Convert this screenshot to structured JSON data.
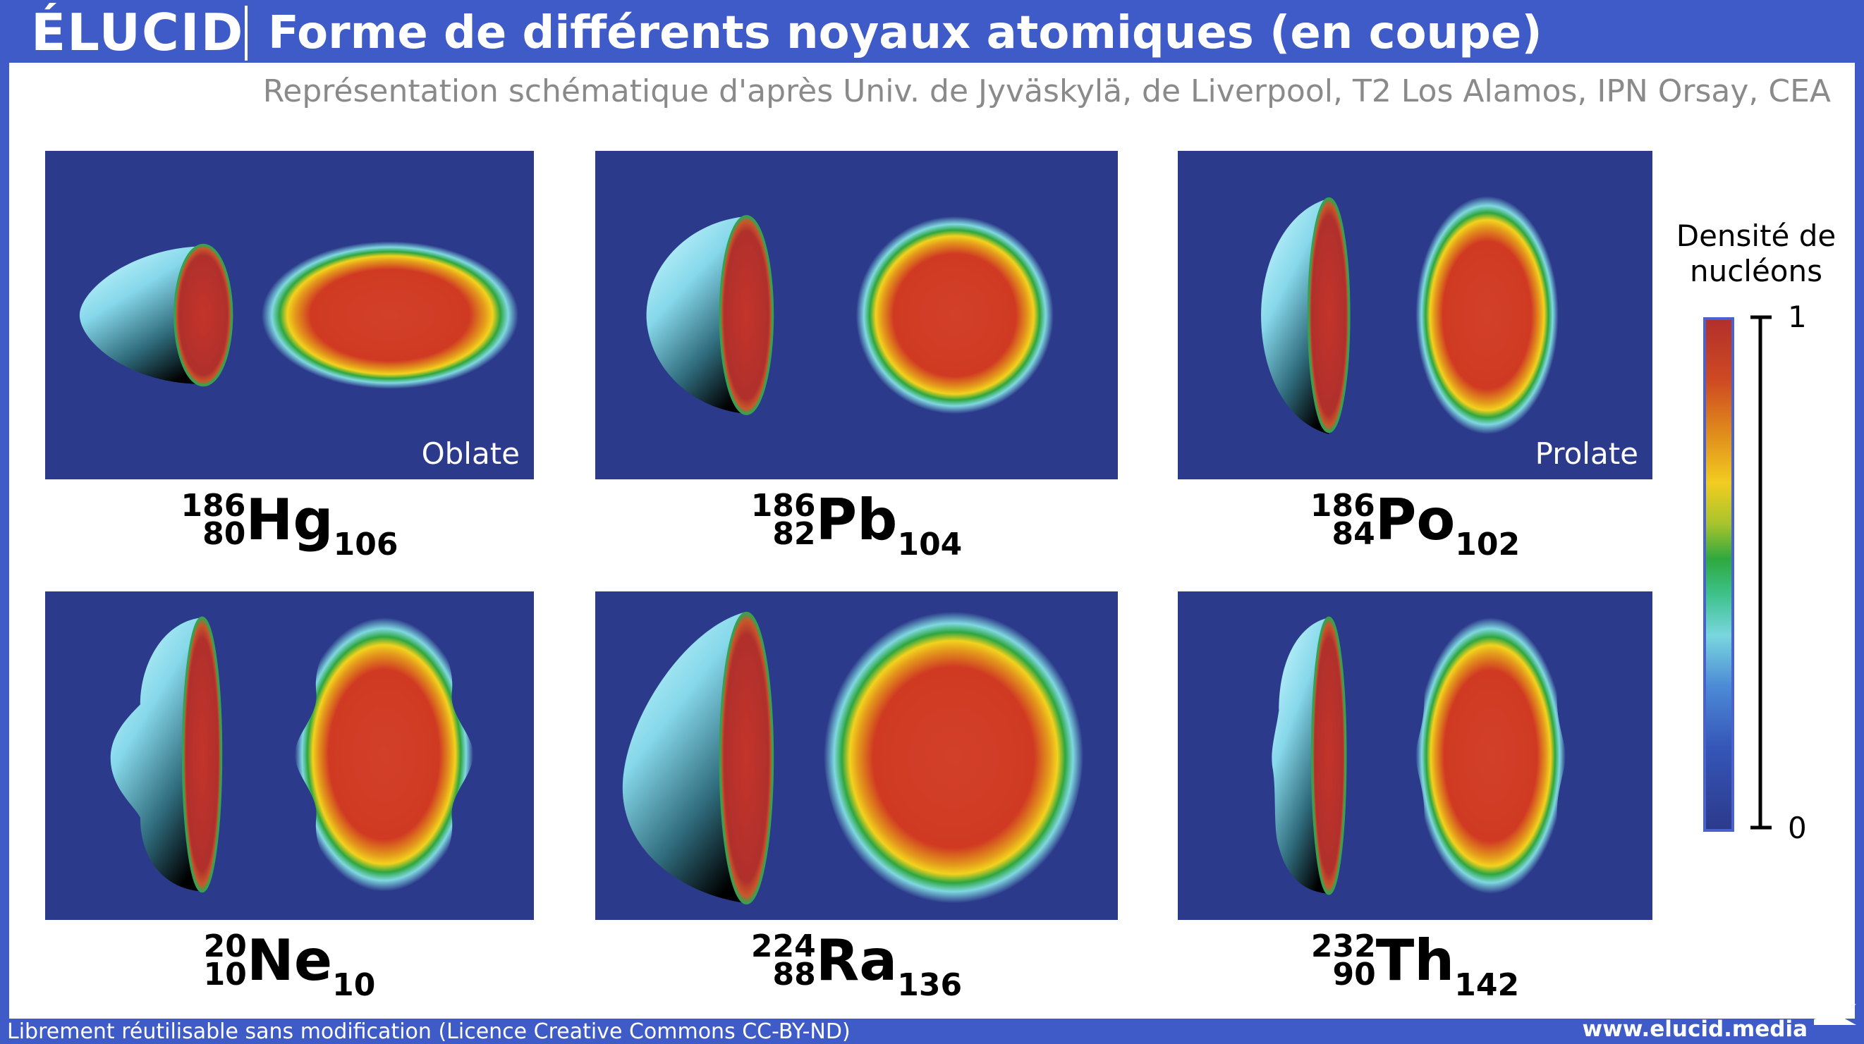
{
  "header": {
    "logo": "ÉLUCID",
    "title": "Forme de différents noyaux atomiques (en coupe)"
  },
  "subtitle": "Représentation schématique d'après Univ. de Jyväskylä, de Liverpool, T2 Los Alamos, IPN Orsay, CEA",
  "nuclei": [
    {
      "mass": 186,
      "protons": 80,
      "symbol": "Hg",
      "neutrons": 106,
      "shape": "Oblate"
    },
    {
      "mass": 186,
      "protons": 82,
      "symbol": "Pb",
      "neutrons": 104
    },
    {
      "mass": 186,
      "protons": 84,
      "symbol": "Po",
      "neutrons": 102,
      "shape": "Prolate"
    },
    {
      "mass": 20,
      "protons": 10,
      "symbol": "Ne",
      "neutrons": 10
    },
    {
      "mass": 224,
      "protons": 88,
      "symbol": "Ra",
      "neutrons": 136
    },
    {
      "mass": 232,
      "protons": 90,
      "symbol": "Th",
      "neutrons": 142
    }
  ],
  "colorbar": {
    "title": "Densité de nucléons",
    "max": 1,
    "min": 0
  },
  "footer": {
    "license": "Librement réutilisable sans modification (Licence Creative Commons CC-BY-ND)",
    "website": "www.elucid.media"
  }
}
